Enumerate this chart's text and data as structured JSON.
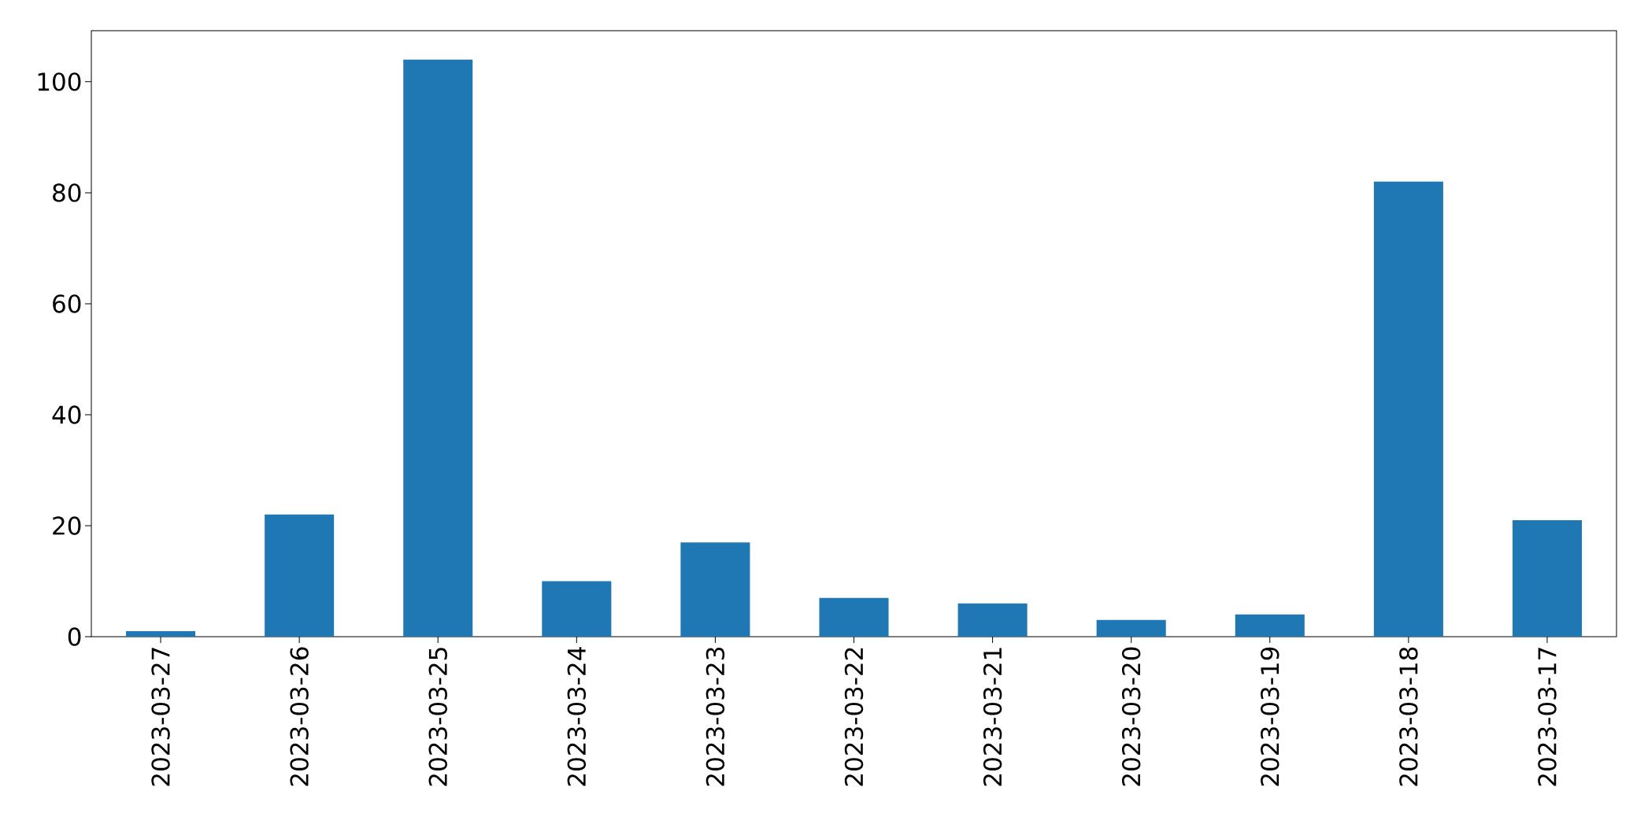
{
  "chart_data": {
    "type": "bar",
    "categories": [
      "2023-03-27",
      "2023-03-26",
      "2023-03-25",
      "2023-03-24",
      "2023-03-23",
      "2023-03-22",
      "2023-03-21",
      "2023-03-20",
      "2023-03-19",
      "2023-03-18",
      "2023-03-17"
    ],
    "values": [
      1,
      22,
      104,
      10,
      17,
      7,
      6,
      3,
      4,
      82,
      21
    ],
    "color": "#1f77b4",
    "ylim": [
      0,
      109.2
    ],
    "yticks": [
      0,
      20,
      40,
      60,
      80,
      100
    ]
  }
}
